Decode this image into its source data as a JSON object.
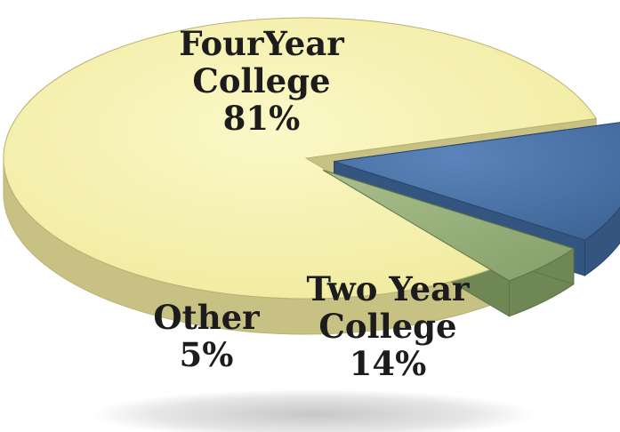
{
  "chart_data": {
    "type": "pie",
    "style": "3d-exploded",
    "slices": [
      {
        "label_lines": [
          "FourYear",
          "College"
        ],
        "value_label": "81%",
        "value": 81,
        "color": "#f7f3ae",
        "side_color": "#c8c184",
        "edge_color": "#b9b275"
      },
      {
        "label_lines": [
          "Two Year",
          "College"
        ],
        "value_label": "14%",
        "value": 14,
        "color": "#4a72a6",
        "side_color": "#33557f",
        "edge_color": "#2a476c"
      },
      {
        "label_lines": [
          "Other"
        ],
        "value_label": "5%",
        "value": 5,
        "color": "#9bb27f",
        "side_color": "#6f8655",
        "edge_color": "#5f7447"
      }
    ],
    "legend": "none",
    "labels": "on-slice"
  }
}
